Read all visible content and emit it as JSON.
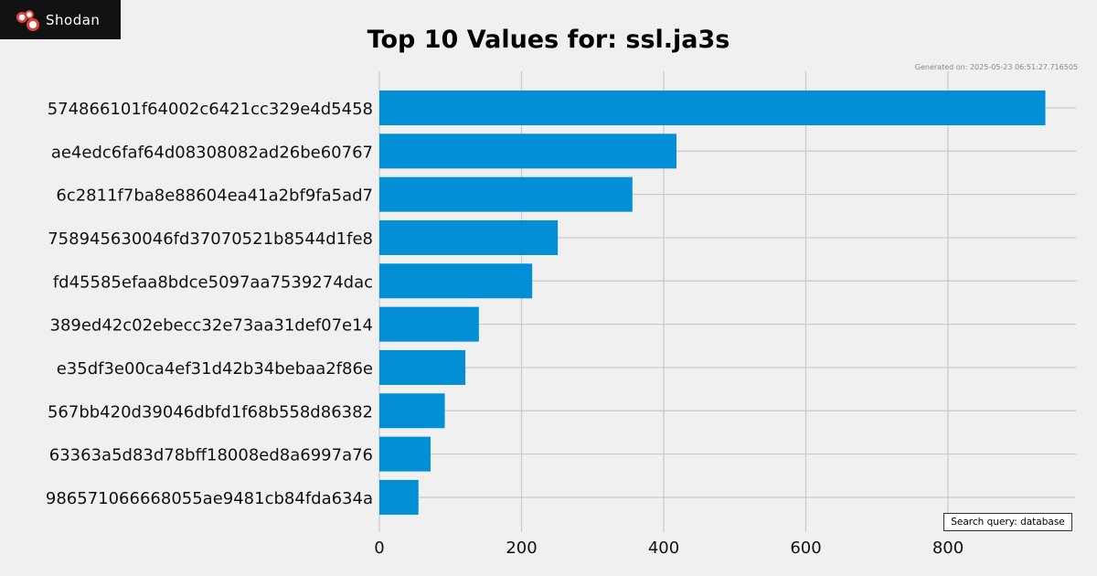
{
  "logo": {
    "text": "Shodan"
  },
  "generated": "Generated on: 2025-05-23 06:51:27.716505",
  "query_label": "Search query: database",
  "colors": {
    "bar": "#038fd6",
    "grid": "#cbcbcb",
    "background": "#f0f0f0"
  },
  "chart_data": {
    "type": "bar",
    "orientation": "horizontal",
    "title": "Top 10 Values for: ssl.ja3s",
    "categories": [
      "574866101f64002c6421cc329e4d5458",
      "ae4edc6faf64d08308082ad26be60767",
      "6c2811f7ba8e88604ea41a2bf9fa5ad7",
      "758945630046fd37070521b8544d1fe8",
      "fd45585efaa8bdce5097aa7539274dac",
      "389ed42c02ebecc32e73aa31def07e14",
      "e35df3e00ca4ef31d42b34bebaa2f86e",
      "567bb420d39046dbfd1f68b558d86382",
      "63363a5d83d78bff18008ed8a6997a76",
      "986571066668055ae9481cb84fda634a"
    ],
    "values": [
      937,
      418,
      356,
      251,
      215,
      140,
      121,
      92,
      72,
      55
    ],
    "xticks": [
      0,
      200,
      400,
      600,
      800
    ],
    "xlim": [
      0,
      984
    ],
    "grid": true
  }
}
